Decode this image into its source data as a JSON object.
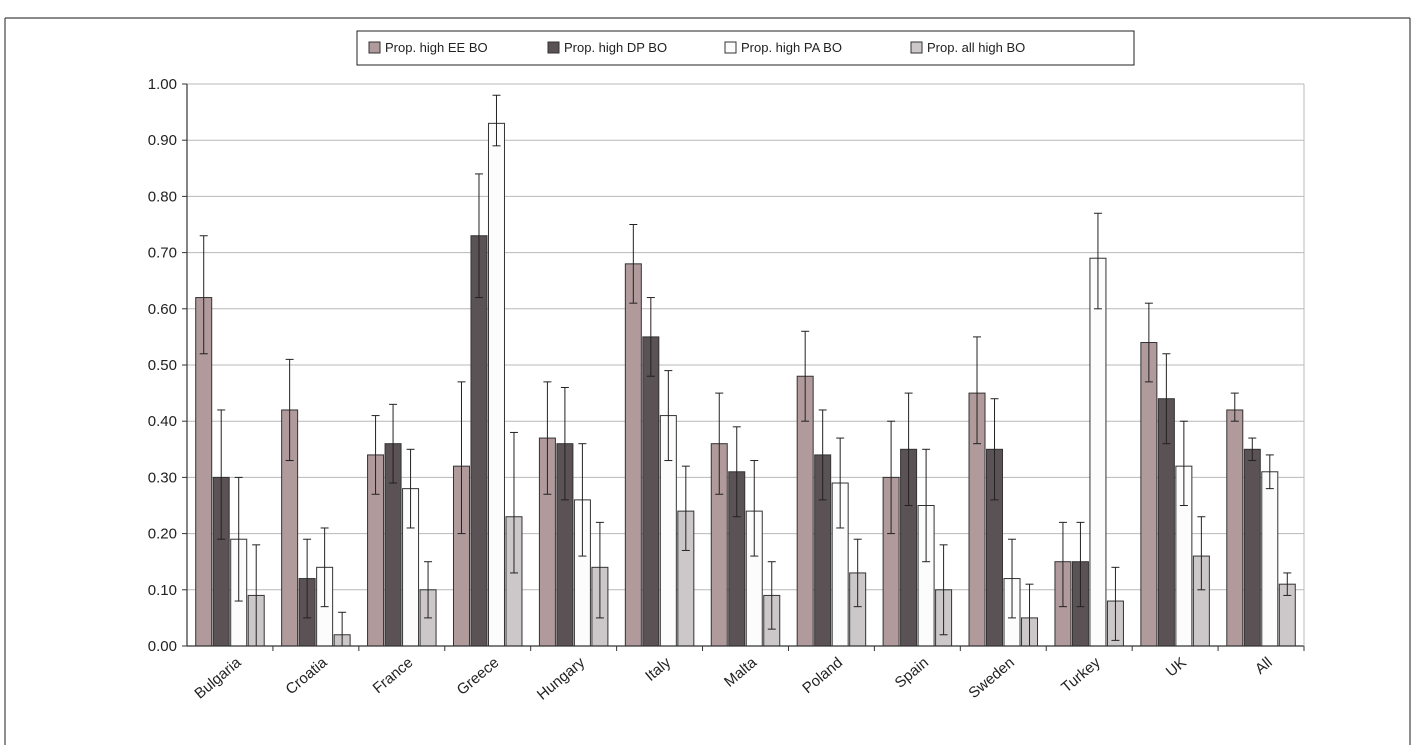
{
  "chart_data": {
    "type": "bar",
    "title": "",
    "xlabel": "",
    "ylabel": "",
    "ylim": [
      0,
      1.0
    ],
    "yticks": [
      "0.00",
      "0.10",
      "0.20",
      "0.30",
      "0.40",
      "0.50",
      "0.60",
      "0.70",
      "0.80",
      "0.90",
      "1.00"
    ],
    "grid": true,
    "legend_position": "top",
    "categories": [
      "Bulgaria",
      "Croatia",
      "France",
      "Greece",
      "Hungary",
      "Italy",
      "Malta",
      "Poland",
      "Spain",
      "Sweden",
      "Turkey",
      "UK",
      "All"
    ],
    "series": [
      {
        "name": "Prop. high EE BO",
        "color": "#b09a9c",
        "values": [
          0.62,
          0.42,
          0.34,
          0.32,
          0.37,
          0.68,
          0.36,
          0.48,
          0.3,
          0.45,
          0.15,
          0.54,
          0.42
        ],
        "err_high": [
          0.73,
          0.51,
          0.41,
          0.47,
          0.47,
          0.75,
          0.45,
          0.56,
          0.4,
          0.55,
          0.22,
          0.61,
          0.45
        ],
        "err_low": [
          0.52,
          0.33,
          0.27,
          0.2,
          0.27,
          0.61,
          0.27,
          0.4,
          0.2,
          0.36,
          0.07,
          0.47,
          0.4
        ]
      },
      {
        "name": "Prop. high DP BO",
        "color": "#5b5255",
        "values": [
          0.3,
          0.12,
          0.36,
          0.73,
          0.36,
          0.55,
          0.31,
          0.34,
          0.35,
          0.35,
          0.15,
          0.44,
          0.35
        ],
        "err_high": [
          0.42,
          0.19,
          0.43,
          0.84,
          0.46,
          0.62,
          0.39,
          0.42,
          0.45,
          0.44,
          0.22,
          0.52,
          0.37
        ],
        "err_low": [
          0.19,
          0.05,
          0.29,
          0.62,
          0.26,
          0.48,
          0.23,
          0.26,
          0.25,
          0.26,
          0.07,
          0.36,
          0.33
        ]
      },
      {
        "name": "Prop. high PA BO",
        "color": "#fcfcfc",
        "values": [
          0.19,
          0.14,
          0.28,
          0.93,
          0.26,
          0.41,
          0.24,
          0.29,
          0.25,
          0.12,
          0.69,
          0.32,
          0.31
        ],
        "err_high": [
          0.3,
          0.21,
          0.35,
          0.98,
          0.36,
          0.49,
          0.33,
          0.37,
          0.35,
          0.19,
          0.77,
          0.4,
          0.34
        ],
        "err_low": [
          0.08,
          0.07,
          0.21,
          0.89,
          0.16,
          0.33,
          0.16,
          0.21,
          0.15,
          0.05,
          0.6,
          0.25,
          0.28
        ]
      },
      {
        "name": "Prop. all high BO",
        "color": "#ccc8ca",
        "values": [
          0.09,
          0.02,
          0.1,
          0.23,
          0.14,
          0.24,
          0.09,
          0.13,
          0.1,
          0.05,
          0.08,
          0.16,
          0.11
        ],
        "err_high": [
          0.18,
          0.06,
          0.15,
          0.38,
          0.22,
          0.32,
          0.15,
          0.19,
          0.18,
          0.11,
          0.14,
          0.23,
          0.13
        ],
        "err_low": [
          0.0,
          0.0,
          0.05,
          0.13,
          0.05,
          0.17,
          0.03,
          0.07,
          0.02,
          0.0,
          0.01,
          0.1,
          0.09
        ]
      }
    ]
  }
}
